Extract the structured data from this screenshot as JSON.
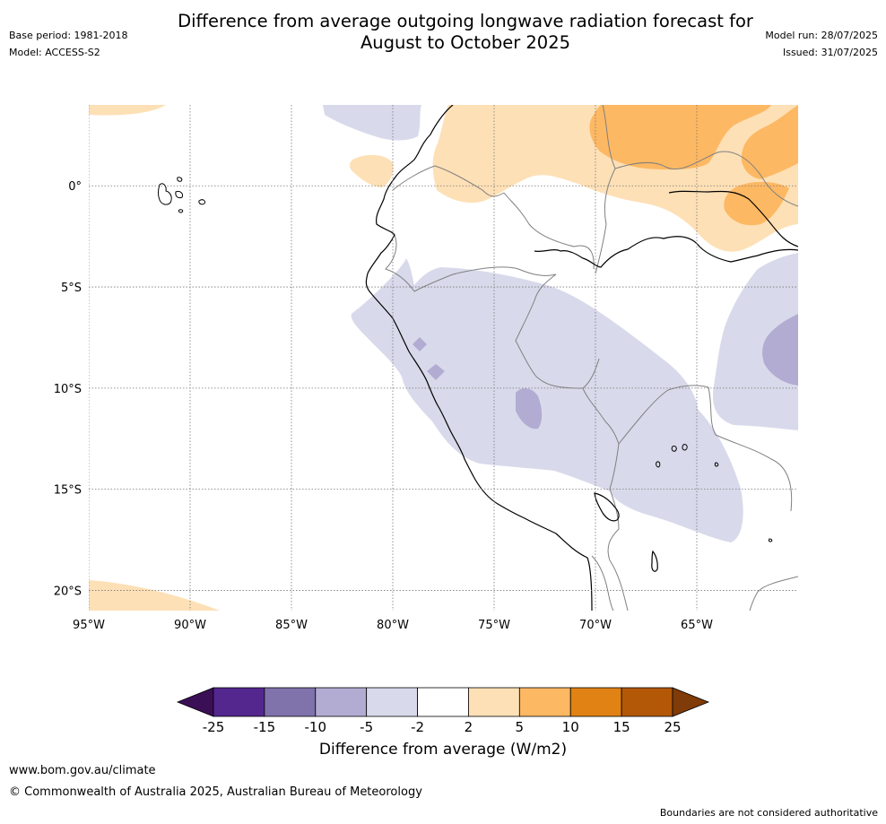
{
  "header": {
    "title_line1": "Difference from average outgoing longwave radiation forecast for",
    "title_line2": "August to October 2025",
    "base_period": "Base period: 1981-2018",
    "model": "Model: ACCESS-S2",
    "model_run": "Model run: 28/07/2025",
    "issued": "Issued: 31/07/2025"
  },
  "map": {
    "lon_labels": [
      "95°W",
      "90°W",
      "85°W",
      "80°W",
      "75°W",
      "70°W",
      "65°W"
    ],
    "lat_labels": [
      "0°",
      "5°S",
      "10°S",
      "15°S",
      "20°S"
    ],
    "grid": true,
    "extent_deg": {
      "lon_min": -95,
      "lon_max": -60,
      "lat_min": -21,
      "lat_max": 4
    }
  },
  "colorbar": {
    "label": "Difference from average (W/m2)",
    "ticks": [
      "-25",
      "-15",
      "-10",
      "-5",
      "-2",
      "2",
      "5",
      "10",
      "15",
      "25"
    ],
    "colors": [
      "#3b0f56",
      "#54278f",
      "#8073ac",
      "#b2abd2",
      "#d8daeb",
      "#ffffff",
      "#fee0b6",
      "#fdb863",
      "#e08214",
      "#b35806",
      "#7f3b08"
    ]
  },
  "footer": {
    "url": "www.bom.gov.au/climate",
    "copyright": "© Commonwealth of Australia 2025, Australian Bureau of Meteorology",
    "disclaimer": "Boundaries are not considered authoritative"
  }
}
